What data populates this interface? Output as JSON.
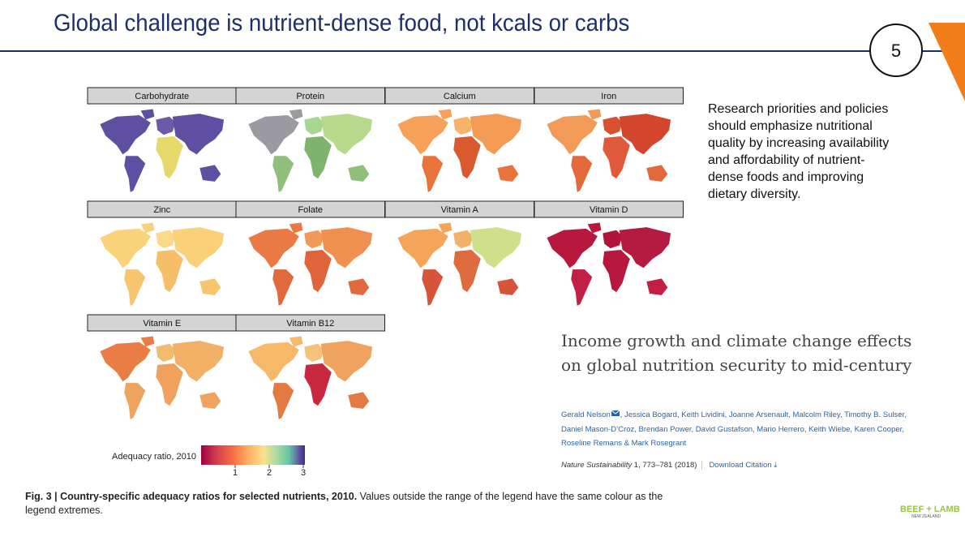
{
  "header": {
    "title": "Global challenge is nutrient-dense food, not kcals or carbs",
    "slide_number": "5"
  },
  "panels": [
    "Carbohydrate",
    "Protein",
    "Calcium",
    "Iron",
    "Zinc",
    "Folate",
    "Vitamin A",
    "Vitamin D",
    "Vitamin E",
    "Vitamin B12"
  ],
  "legend": {
    "label": "Adequacy ratio, 2010",
    "ticks": [
      1,
      2,
      3
    ]
  },
  "caption": {
    "bold": "Fig. 3 | Country-specific adequacy ratios for selected nutrients, 2010.",
    "text": "Values outside the range of the legend have the same colour as the legend extremes."
  },
  "note": "Research priorities and policies should emphasize nutritional quality by increasing availability and affordability of nutrient-dense foods and improving dietary diversity.",
  "paper": {
    "title": "Income growth and climate change effects on global nutrition security to mid-century",
    "authors": [
      "Gerald Nelson",
      ", Jessica Bogard, Keith Lividini, Joanne Arsenault, Malcolm Riley, Timothy B. Sulser,",
      "Daniel Mason-D’Croz, Brendan Power, David Gustafson, Mario Herrero, Keith Wiebe, Karen Cooper,",
      "Roseline Remans & Mark Rosegrant"
    ],
    "journal": "Nature Sustainability",
    "citation": "1, 773–781 (2018)",
    "download": "Download Citation ⤓"
  },
  "logo": {
    "name": "BEEF + LAMB",
    "sub": "NEW ZEALAND"
  }
}
